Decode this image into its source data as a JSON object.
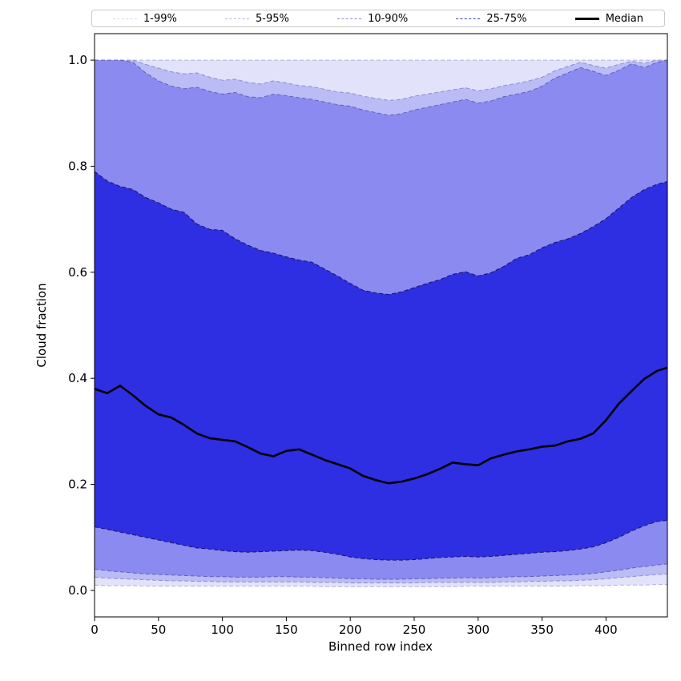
{
  "figure": {
    "background": "#ffffff"
  },
  "legend": {
    "items": [
      {
        "label": "1-99%",
        "color": "#d9d9f7",
        "style": "dashed"
      },
      {
        "label": "5-95%",
        "color": "#b5b5f2",
        "style": "dashed"
      },
      {
        "label": "10-90%",
        "color": "#8a8aee",
        "style": "dashed"
      },
      {
        "label": "25-75%",
        "color": "#4040d8",
        "style": "dashed"
      },
      {
        "label": "Median",
        "color": "#000000",
        "style": "solid"
      }
    ]
  },
  "chart_data": {
    "type": "area",
    "title": "",
    "xlabel": "Binned row index",
    "ylabel": "Cloud fraction",
    "xlim": [
      0,
      448
    ],
    "ylim": [
      -0.05,
      1.05
    ],
    "grid": false,
    "legend_position": "top",
    "x_tick_values": [
      0,
      50,
      100,
      150,
      200,
      250,
      300,
      350,
      400
    ],
    "x_tick_labels": [
      "0",
      "50",
      "100",
      "150",
      "200",
      "250",
      "300",
      "350",
      "400"
    ],
    "y_tick_values": [
      0.0,
      0.2,
      0.4,
      0.6,
      0.8,
      1.0
    ],
    "y_tick_labels": [
      "0.0",
      "0.2",
      "0.4",
      "0.6",
      "0.8",
      "1.0"
    ],
    "x": [
      0,
      10,
      20,
      30,
      40,
      50,
      60,
      70,
      80,
      90,
      100,
      110,
      120,
      130,
      140,
      150,
      160,
      170,
      180,
      190,
      200,
      210,
      220,
      230,
      240,
      250,
      260,
      270,
      280,
      290,
      300,
      310,
      320,
      330,
      340,
      350,
      360,
      370,
      380,
      390,
      400,
      410,
      420,
      430,
      440,
      448
    ],
    "series": [
      {
        "name": "p1",
        "values": [
          0.01,
          0.009,
          0.009,
          0.009,
          0.008,
          0.008,
          0.008,
          0.008,
          0.008,
          0.008,
          0.008,
          0.008,
          0.008,
          0.008,
          0.008,
          0.008,
          0.008,
          0.008,
          0.007,
          0.007,
          0.007,
          0.007,
          0.007,
          0.007,
          0.007,
          0.007,
          0.007,
          0.007,
          0.007,
          0.008,
          0.008,
          0.008,
          0.008,
          0.008,
          0.008,
          0.008,
          0.008,
          0.008,
          0.009,
          0.009,
          0.009,
          0.01,
          0.01,
          0.01,
          0.011,
          0.011
        ]
      },
      {
        "name": "p5",
        "values": [
          0.025,
          0.023,
          0.022,
          0.021,
          0.02,
          0.019,
          0.018,
          0.018,
          0.017,
          0.017,
          0.016,
          0.016,
          0.016,
          0.016,
          0.016,
          0.016,
          0.016,
          0.015,
          0.015,
          0.015,
          0.014,
          0.014,
          0.014,
          0.014,
          0.014,
          0.014,
          0.015,
          0.015,
          0.015,
          0.015,
          0.015,
          0.015,
          0.016,
          0.016,
          0.017,
          0.017,
          0.018,
          0.018,
          0.019,
          0.02,
          0.022,
          0.024,
          0.026,
          0.028,
          0.03,
          0.031
        ]
      },
      {
        "name": "p10",
        "values": [
          0.04,
          0.037,
          0.035,
          0.033,
          0.031,
          0.03,
          0.029,
          0.028,
          0.027,
          0.026,
          0.026,
          0.025,
          0.025,
          0.025,
          0.026,
          0.026,
          0.025,
          0.025,
          0.024,
          0.023,
          0.022,
          0.022,
          0.021,
          0.021,
          0.021,
          0.022,
          0.022,
          0.023,
          0.023,
          0.024,
          0.023,
          0.024,
          0.025,
          0.026,
          0.026,
          0.027,
          0.028,
          0.029,
          0.03,
          0.032,
          0.035,
          0.038,
          0.042,
          0.045,
          0.048,
          0.05
        ]
      },
      {
        "name": "p25",
        "values": [
          0.12,
          0.115,
          0.11,
          0.105,
          0.1,
          0.095,
          0.09,
          0.085,
          0.08,
          0.078,
          0.075,
          0.073,
          0.072,
          0.073,
          0.074,
          0.075,
          0.076,
          0.075,
          0.072,
          0.068,
          0.063,
          0.06,
          0.058,
          0.057,
          0.057,
          0.058,
          0.06,
          0.062,
          0.063,
          0.064,
          0.063,
          0.064,
          0.066,
          0.068,
          0.07,
          0.072,
          0.073,
          0.075,
          0.078,
          0.082,
          0.09,
          0.1,
          0.112,
          0.122,
          0.13,
          0.132
        ]
      },
      {
        "name": "median",
        "values": [
          0.38,
          0.372,
          0.386,
          0.368,
          0.348,
          0.332,
          0.326,
          0.312,
          0.296,
          0.287,
          0.284,
          0.281,
          0.27,
          0.258,
          0.253,
          0.263,
          0.266,
          0.256,
          0.246,
          0.238,
          0.23,
          0.216,
          0.208,
          0.202,
          0.205,
          0.211,
          0.219,
          0.229,
          0.241,
          0.238,
          0.236,
          0.249,
          0.256,
          0.262,
          0.266,
          0.271,
          0.273,
          0.281,
          0.286,
          0.296,
          0.321,
          0.352,
          0.376,
          0.399,
          0.414,
          0.42
        ]
      },
      {
        "name": "p75",
        "values": [
          0.79,
          0.772,
          0.762,
          0.756,
          0.741,
          0.731,
          0.719,
          0.713,
          0.691,
          0.681,
          0.679,
          0.663,
          0.651,
          0.641,
          0.636,
          0.629,
          0.623,
          0.619,
          0.606,
          0.593,
          0.579,
          0.566,
          0.561,
          0.558,
          0.563,
          0.571,
          0.579,
          0.586,
          0.596,
          0.601,
          0.593,
          0.599,
          0.611,
          0.626,
          0.633,
          0.646,
          0.656,
          0.663,
          0.673,
          0.686,
          0.701,
          0.721,
          0.741,
          0.756,
          0.766,
          0.771
        ]
      },
      {
        "name": "p90",
        "values": [
          1.0,
          1.0,
          1.0,
          0.996,
          0.976,
          0.961,
          0.951,
          0.946,
          0.949,
          0.941,
          0.936,
          0.939,
          0.931,
          0.929,
          0.936,
          0.933,
          0.929,
          0.926,
          0.921,
          0.916,
          0.913,
          0.906,
          0.901,
          0.896,
          0.899,
          0.906,
          0.911,
          0.916,
          0.921,
          0.926,
          0.919,
          0.923,
          0.931,
          0.936,
          0.941,
          0.951,
          0.966,
          0.976,
          0.986,
          0.979,
          0.971,
          0.981,
          0.993,
          0.986,
          0.996,
          1.0
        ]
      },
      {
        "name": "p95",
        "values": [
          1.0,
          1.0,
          1.0,
          1.0,
          0.992,
          0.985,
          0.978,
          0.974,
          0.976,
          0.968,
          0.962,
          0.964,
          0.958,
          0.955,
          0.961,
          0.957,
          0.952,
          0.95,
          0.945,
          0.94,
          0.938,
          0.932,
          0.928,
          0.924,
          0.926,
          0.932,
          0.936,
          0.94,
          0.944,
          0.948,
          0.942,
          0.946,
          0.952,
          0.956,
          0.961,
          0.968,
          0.98,
          0.988,
          0.996,
          0.99,
          0.985,
          0.992,
          0.998,
          0.994,
          1.0,
          1.0
        ]
      },
      {
        "name": "p99",
        "values": [
          1.0,
          1.0,
          1.0,
          1.0,
          1.0,
          1.0,
          1.0,
          1.0,
          1.0,
          1.0,
          1.0,
          1.0,
          1.0,
          1.0,
          1.0,
          1.0,
          1.0,
          1.0,
          1.0,
          1.0,
          1.0,
          1.0,
          1.0,
          1.0,
          1.0,
          1.0,
          1.0,
          1.0,
          1.0,
          1.0,
          1.0,
          1.0,
          1.0,
          1.0,
          1.0,
          1.0,
          1.0,
          1.0,
          1.0,
          1.0,
          1.0,
          1.0,
          1.0,
          1.0,
          1.0,
          1.0
        ]
      }
    ],
    "bands": [
      {
        "label": "1-99%",
        "lower": "p1",
        "upper": "p99",
        "fill": "#e2e2fa",
        "edge": "#b0b0e0"
      },
      {
        "label": "5-95%",
        "lower": "p5",
        "upper": "p95",
        "fill": "#bbbbf6",
        "edge": "#8d8dd0"
      },
      {
        "label": "10-90%",
        "lower": "p10",
        "upper": "p90",
        "fill": "#8a8af0",
        "edge": "#6060bb"
      },
      {
        "label": "25-75%",
        "lower": "p25",
        "upper": "p75",
        "fill": "#2e2ee2",
        "edge": "#16165f"
      }
    ],
    "median": {
      "color": "#000000",
      "width": 2.6
    }
  }
}
